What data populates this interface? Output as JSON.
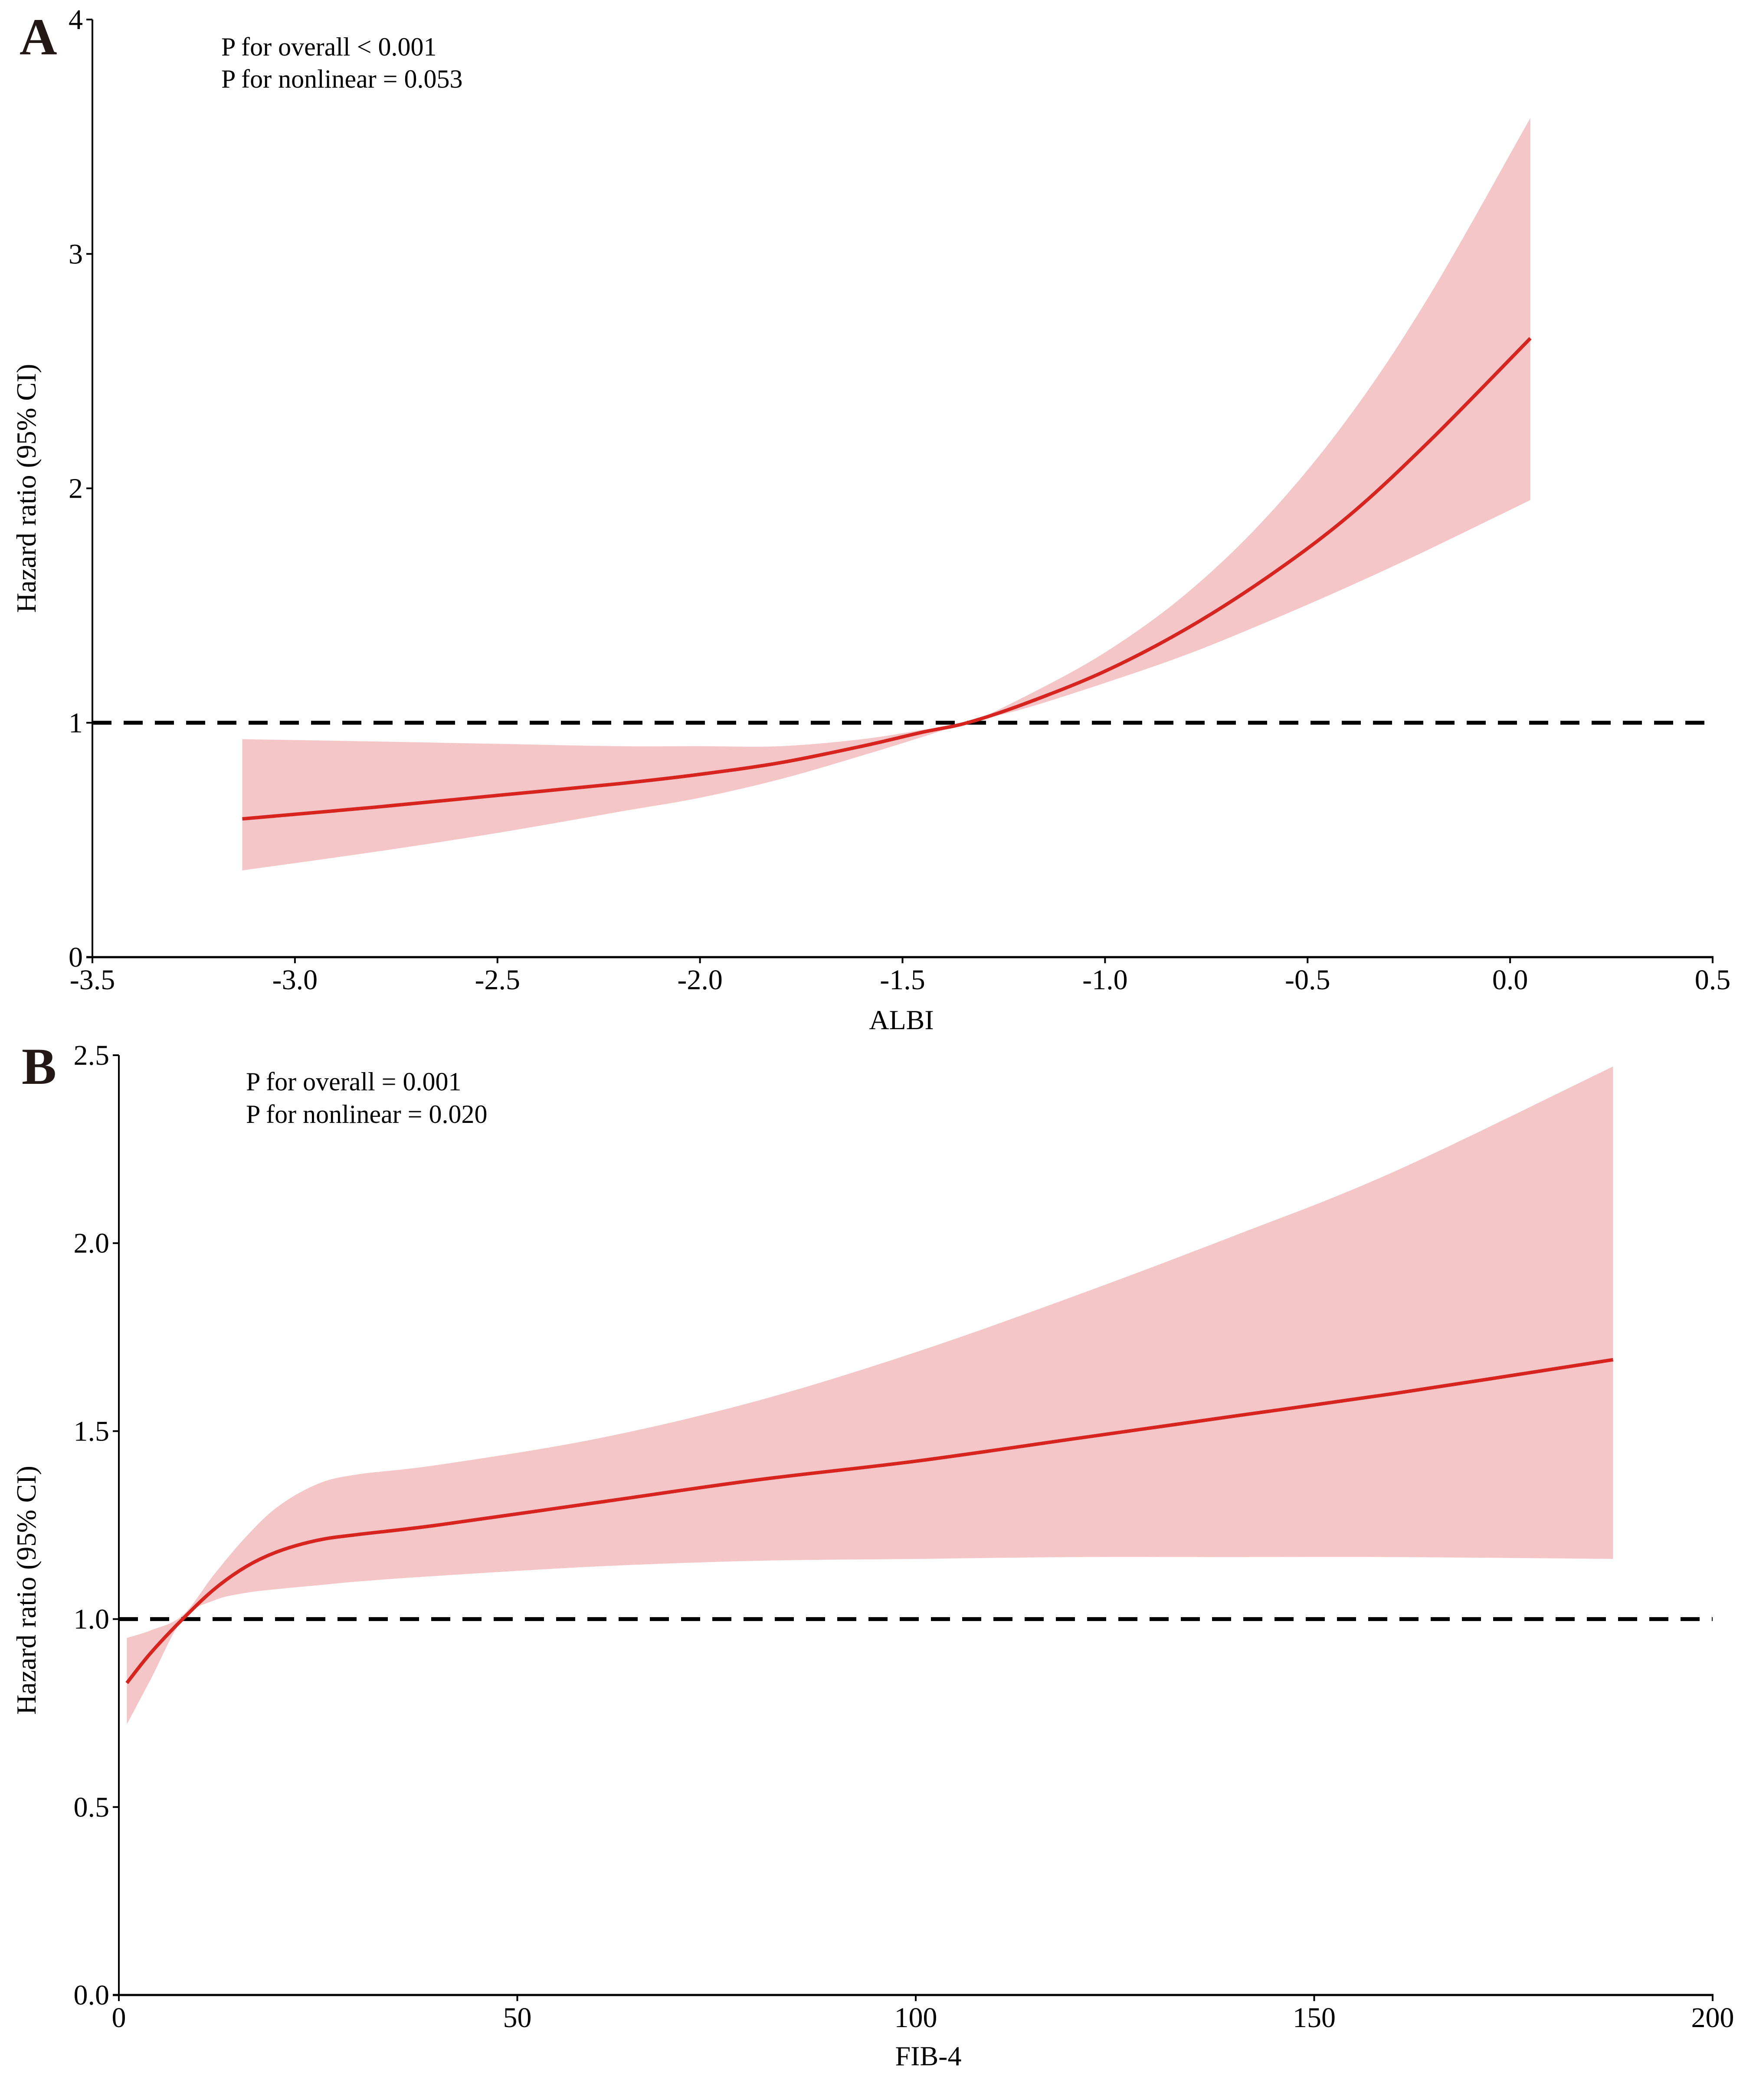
{
  "colors": {
    "line": "#d7241f",
    "band": "#f5c6c7",
    "reference": "#000000",
    "axis": "#000000"
  },
  "chart_data": [
    {
      "panel": "A",
      "type": "line",
      "xlabel": "ALBI",
      "ylabel": "Hazard ratio (95% CI)",
      "xlim": [
        -3.5,
        0.5
      ],
      "ylim": [
        0,
        4
      ],
      "xticks": [
        -3.5,
        -3.0,
        -2.5,
        -2.0,
        -1.5,
        -1.0,
        -0.5,
        0.0,
        0.5
      ],
      "xtick_labels": [
        "-3.5",
        "-3.0",
        "-2.5",
        "-2.0",
        "-1.5",
        "-1.0",
        "-0.5",
        "0.0",
        "0.5"
      ],
      "yticks": [
        0,
        1,
        2,
        3,
        4
      ],
      "ytick_labels": [
        "0",
        "1",
        "2",
        "3",
        "4"
      ],
      "reference_line": 1,
      "annotations": [
        "P for overall < 0.001",
        "P for nonlinear = 0.053"
      ],
      "grid": false,
      "series": [
        {
          "name": "HR",
          "x": [
            -3.13,
            -2.8,
            -2.5,
            -2.2,
            -2.0,
            -1.8,
            -1.6,
            -1.45,
            -1.34,
            -1.2,
            -1.0,
            -0.8,
            -0.6,
            -0.4,
            -0.2,
            0.05
          ],
          "y": [
            0.59,
            0.64,
            0.69,
            0.74,
            0.78,
            0.83,
            0.9,
            0.96,
            1.0,
            1.08,
            1.22,
            1.4,
            1.62,
            1.88,
            2.2,
            2.64
          ],
          "lower": [
            0.37,
            0.45,
            0.53,
            0.62,
            0.68,
            0.76,
            0.86,
            0.94,
            1.0,
            1.06,
            1.17,
            1.29,
            1.43,
            1.58,
            1.74,
            1.95
          ],
          "upper": [
            0.93,
            0.92,
            0.91,
            0.9,
            0.9,
            0.9,
            0.93,
            0.97,
            1.0,
            1.11,
            1.3,
            1.55,
            1.88,
            2.3,
            2.82,
            3.58
          ]
        }
      ]
    },
    {
      "panel": "B",
      "type": "line",
      "xlabel": "FIB-4",
      "ylabel": "Hazard ratio (95% CI)",
      "xlim": [
        0,
        200
      ],
      "ylim": [
        0,
        2.5
      ],
      "xticks": [
        0,
        50,
        100,
        150,
        200
      ],
      "xtick_labels": [
        "0",
        "50",
        "100",
        "150",
        "200"
      ],
      "yticks": [
        0,
        0.5,
        1.0,
        1.5,
        2.0,
        2.5
      ],
      "ytick_labels": [
        "0.0",
        "0.5",
        "1.0",
        "1.5",
        "2.0",
        "2.5"
      ],
      "reference_line": 1,
      "annotations": [
        "P for overall = 0.001",
        "P for nonlinear = 0.020"
      ],
      "grid": false,
      "series": [
        {
          "name": "HR",
          "x": [
            1,
            4,
            8,
            12,
            16,
            20,
            25,
            30,
            40,
            60,
            80,
            100,
            120,
            140,
            160,
            187.5
          ],
          "y": [
            0.83,
            0.91,
            1.0,
            1.08,
            1.14,
            1.18,
            1.21,
            1.225,
            1.25,
            1.31,
            1.37,
            1.42,
            1.48,
            1.54,
            1.6,
            1.69
          ],
          "lower": [
            0.72,
            0.84,
            1.0,
            1.05,
            1.07,
            1.08,
            1.09,
            1.1,
            1.115,
            1.14,
            1.155,
            1.16,
            1.165,
            1.165,
            1.165,
            1.16
          ],
          "upper": [
            0.95,
            0.97,
            1.01,
            1.12,
            1.22,
            1.3,
            1.36,
            1.385,
            1.41,
            1.48,
            1.58,
            1.71,
            1.86,
            2.02,
            2.19,
            2.47
          ]
        }
      ]
    }
  ]
}
